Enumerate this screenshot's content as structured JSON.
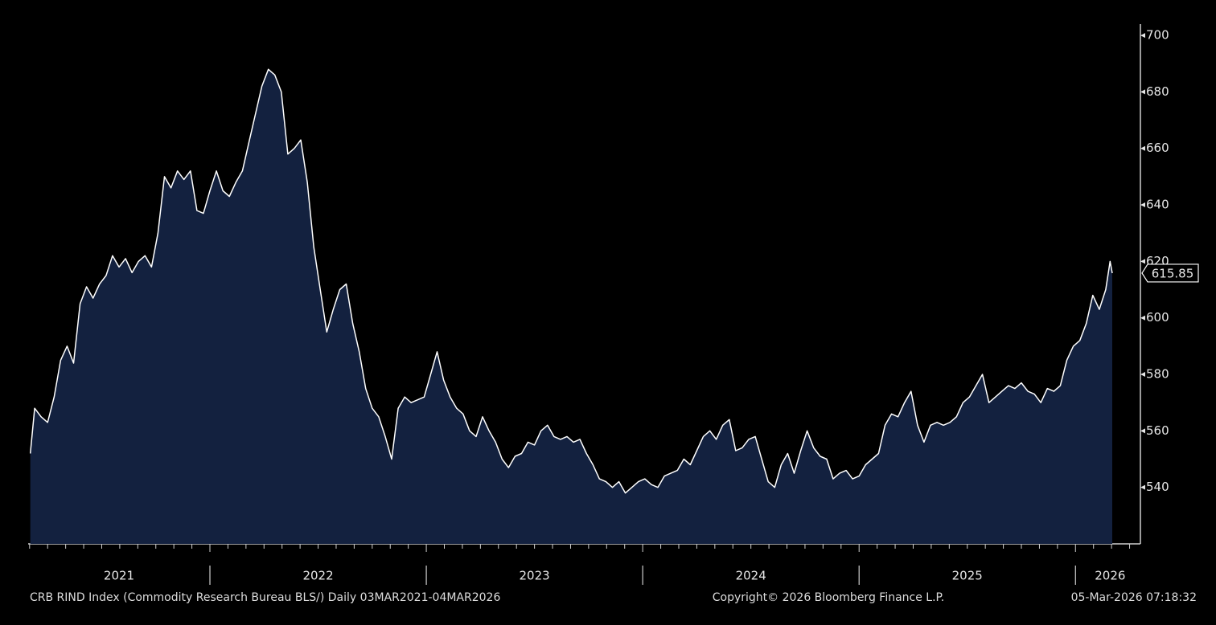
{
  "chart_data": {
    "type": "area",
    "footer_left": "CRB RIND Index (Commodity Research Bureau BLS/) Daily 03MAR2021-04MAR2026",
    "footer_center": "Copyright© 2026 Bloomberg Finance L.P.",
    "footer_right": "05-Mar-2026 07:18:32",
    "line_color": "#ffffff",
    "fill_color": "#13213f",
    "xlim": [
      2021.16,
      2026.3
    ],
    "xticks": [
      {
        "value": 2021.58,
        "label": "2021"
      },
      {
        "value": 2022.5,
        "label": "2022"
      },
      {
        "value": 2023.5,
        "label": "2023"
      },
      {
        "value": 2024.5,
        "label": "2024"
      },
      {
        "value": 2025.5,
        "label": "2025"
      },
      {
        "value": 2026.16,
        "label": "2026"
      }
    ],
    "ylim": [
      520,
      704
    ],
    "yticks": [
      540,
      560,
      580,
      600,
      620,
      640,
      660,
      680,
      700
    ],
    "x": [
      2021.17,
      2021.19,
      2021.22,
      2021.25,
      2021.28,
      2021.31,
      2021.34,
      2021.37,
      2021.4,
      2021.43,
      2021.46,
      2021.49,
      2021.52,
      2021.55,
      2021.58,
      2021.61,
      2021.64,
      2021.67,
      2021.7,
      2021.73,
      2021.76,
      2021.79,
      2021.82,
      2021.85,
      2021.88,
      2021.91,
      2021.94,
      2021.97,
      2022.0,
      2022.03,
      2022.06,
      2022.09,
      2022.12,
      2022.15,
      2022.18,
      2022.21,
      2022.24,
      2022.27,
      2022.3,
      2022.33,
      2022.36,
      2022.39,
      2022.42,
      2022.45,
      2022.48,
      2022.51,
      2022.54,
      2022.57,
      2022.6,
      2022.63,
      2022.66,
      2022.69,
      2022.72,
      2022.75,
      2022.78,
      2022.81,
      2022.84,
      2022.87,
      2022.9,
      2022.93,
      2022.96,
      2022.99,
      2023.02,
      2023.05,
      2023.08,
      2023.11,
      2023.14,
      2023.17,
      2023.2,
      2023.23,
      2023.26,
      2023.29,
      2023.32,
      2023.35,
      2023.38,
      2023.41,
      2023.44,
      2023.47,
      2023.5,
      2023.53,
      2023.56,
      2023.59,
      2023.62,
      2023.65,
      2023.68,
      2023.71,
      2023.74,
      2023.77,
      2023.8,
      2023.83,
      2023.86,
      2023.89,
      2023.92,
      2023.95,
      2023.98,
      2024.01,
      2024.04,
      2024.07,
      2024.1,
      2024.13,
      2024.16,
      2024.19,
      2024.22,
      2024.25,
      2024.28,
      2024.31,
      2024.34,
      2024.37,
      2024.4,
      2024.43,
      2024.46,
      2024.49,
      2024.52,
      2024.55,
      2024.58,
      2024.61,
      2024.64,
      2024.67,
      2024.7,
      2024.73,
      2024.76,
      2024.79,
      2024.82,
      2024.85,
      2024.88,
      2024.91,
      2024.94,
      2024.97,
      2025.0,
      2025.03,
      2025.06,
      2025.09,
      2025.12,
      2025.15,
      2025.18,
      2025.21,
      2025.24,
      2025.27,
      2025.3,
      2025.33,
      2025.36,
      2025.39,
      2025.42,
      2025.45,
      2025.48,
      2025.51,
      2025.54,
      2025.57,
      2025.6,
      2025.63,
      2025.66,
      2025.69,
      2025.72,
      2025.75,
      2025.78,
      2025.81,
      2025.84,
      2025.87,
      2025.9,
      2025.93,
      2025.96,
      2025.99,
      2026.02,
      2026.05,
      2026.08,
      2026.11,
      2026.14,
      2026.16,
      2026.17
    ],
    "values": [
      552,
      568,
      565,
      563,
      572,
      585,
      590,
      584,
      605,
      611,
      607,
      612,
      615,
      622,
      618,
      621,
      616,
      620,
      622,
      618,
      630,
      650,
      646,
      652,
      649,
      652,
      638,
      637,
      645,
      652,
      645,
      643,
      648,
      652,
      662,
      672,
      682,
      688,
      686,
      680,
      658,
      660,
      663,
      648,
      625,
      610,
      595,
      603,
      610,
      612,
      598,
      588,
      575,
      568,
      565,
      558,
      550,
      568,
      572,
      570,
      571,
      572,
      580,
      588,
      578,
      572,
      568,
      566,
      560,
      558,
      565,
      560,
      556,
      550,
      547,
      551,
      552,
      556,
      555,
      560,
      562,
      558,
      557,
      558,
      556,
      557,
      552,
      548,
      543,
      542,
      540,
      542,
      538,
      540,
      542,
      543,
      541,
      540,
      544,
      545,
      546,
      550,
      548,
      553,
      558,
      560,
      557,
      562,
      564,
      553,
      554,
      557,
      558,
      550,
      542,
      540,
      548,
      552,
      545,
      553,
      560,
      554,
      551,
      550,
      543,
      545,
      546,
      543,
      544,
      548,
      550,
      552,
      562,
      566,
      565,
      570,
      574,
      562,
      556,
      562,
      563,
      562,
      563,
      565,
      570,
      572,
      576,
      580,
      570,
      572,
      574,
      576,
      575,
      577,
      574,
      573,
      570,
      575,
      574,
      576,
      585,
      590,
      592,
      598,
      608,
      603,
      610,
      620,
      615.85
    ]
  }
}
